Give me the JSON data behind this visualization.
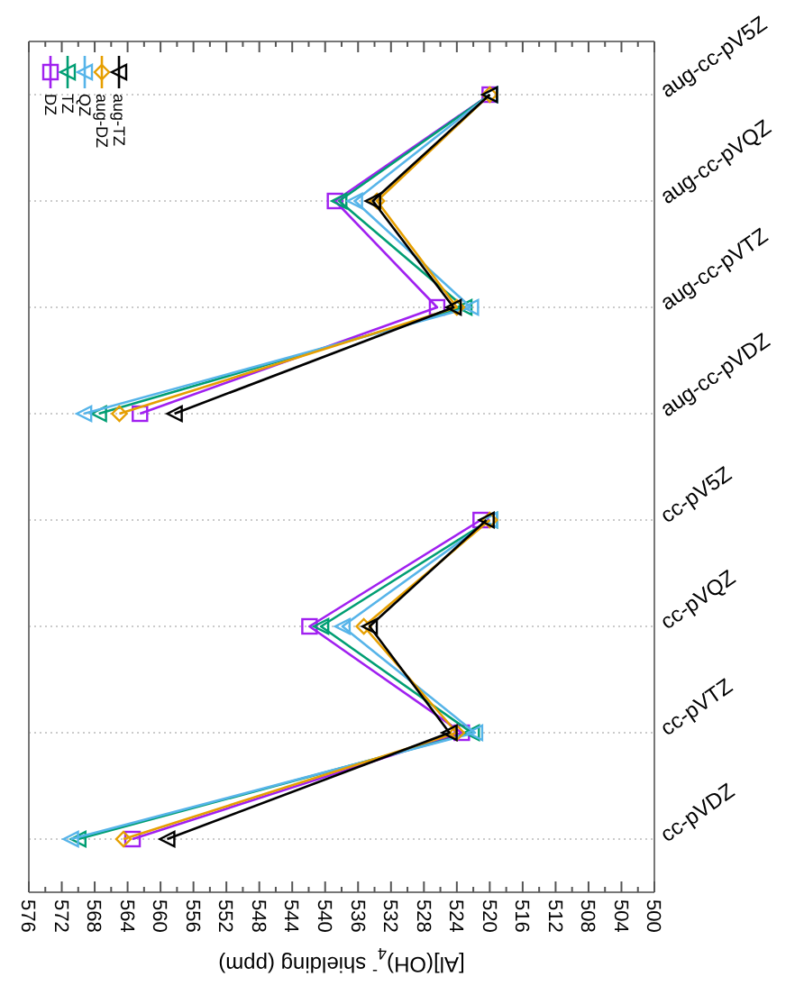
{
  "chart_data": [
    {
      "type": "line",
      "orientation": "horizontal",
      "tick_labels": "y",
      "categories": [
        "aug-cc-pV5Z",
        "aug-cc-pVQZ",
        "aug-cc-pVTZ",
        "aug-cc-pVDZ"
      ],
      "xlim": [
        576,
        500
      ],
      "xticks": [
        576,
        {
          "value": 574,
          "label": null
        },
        572,
        {
          "value": 570,
          "label": null
        },
        568,
        {
          "value": 566,
          "label": null
        },
        564,
        {
          "value": 562,
          "label": null
        },
        560,
        {
          "value": 558,
          "label": null
        },
        556,
        {
          "value": 554,
          "label": null
        },
        552,
        {
          "value": 550,
          "label": null
        },
        548,
        {
          "value": 546,
          "label": null
        },
        544,
        {
          "value": 542,
          "label": null
        },
        540,
        {
          "value": 538,
          "label": null
        },
        536,
        {
          "value": 534,
          "label": null
        },
        532,
        {
          "value": 530,
          "label": null
        },
        528,
        {
          "value": 526,
          "label": null
        },
        524,
        {
          "value": 522,
          "label": null
        },
        520,
        {
          "value": 518,
          "label": null
        },
        516,
        {
          "value": 514,
          "label": null
        },
        512,
        {
          "value": 510,
          "label": null
        },
        508,
        {
          "value": 506,
          "label": null
        },
        504,
        {
          "value": 502,
          "label": null
        },
        500
      ],
      "grid": "y",
      "legend": "top left",
      "series": [
        {
          "name": "DZ",
          "color": "#a020f0",
          "marker": "square",
          "values": [
            520.0,
            538.8,
            526.4,
            562.5
          ]
        },
        {
          "name": "TZ",
          "color": "#009e73",
          "marker": "triangle",
          "values": [
            520.0,
            538.3,
            523.1,
            567.5
          ]
        },
        {
          "name": "QZ",
          "color": "#56b4e9",
          "marker": "triangle",
          "values": [
            520.0,
            536.4,
            522.3,
            569.3
          ]
        },
        {
          "name": "aug-DZ",
          "color": "#e69f00",
          "marker": "diamond",
          "values": [
            520.0,
            533.7,
            524.0,
            565.0
          ]
        },
        {
          "name": "aug-TZ",
          "color": "#000000",
          "marker": "triangle",
          "values": [
            520.0,
            534.2,
            524.4,
            558.3
          ]
        }
      ]
    },
    {
      "type": "line",
      "orientation": "horizontal",
      "xlabel": "[Al](OH)$_{4}$$^{-}$ shielding (ppm)",
      "categories": [
        "cc-pV5Z",
        "cc-pVQZ",
        "cc-pVTZ",
        "cc-pVDZ"
      ],
      "xlim": [
        576,
        500
      ],
      "xticks": [
        576,
        {
          "value": 574,
          "label": null
        },
        572,
        {
          "value": 570,
          "label": null
        },
        568,
        {
          "value": 566,
          "label": null
        },
        564,
        {
          "value": 562,
          "label": null
        },
        560,
        {
          "value": 558,
          "label": null
        },
        556,
        {
          "value": 554,
          "label": null
        },
        552,
        {
          "value": 550,
          "label": null
        },
        548,
        {
          "value": 546,
          "label": null
        },
        544,
        {
          "value": 542,
          "label": null
        },
        540,
        {
          "value": 538,
          "label": null
        },
        536,
        {
          "value": 534,
          "label": null
        },
        532,
        {
          "value": 530,
          "label": null
        },
        528,
        {
          "value": 526,
          "label": null
        },
        524,
        {
          "value": 522,
          "label": null
        },
        520,
        {
          "value": 518,
          "label": null
        },
        516,
        {
          "value": 514,
          "label": null
        },
        512,
        {
          "value": 510,
          "label": null
        },
        508,
        {
          "value": 506,
          "label": null
        },
        504,
        {
          "value": 502,
          "label": null
        },
        500
      ],
      "grid": "y",
      "series": [
        {
          "color": "#a020f0",
          "marker": "square",
          "values": [
            521.1,
            541.9,
            523.4,
            563.4
          ]
        },
        {
          "color": "#009e73",
          "marker": "triangle",
          "values": [
            520.0,
            540.5,
            522.2,
            570.0
          ]
        },
        {
          "color": "#56b4e9",
          "marker": "triangle",
          "values": [
            520.0,
            537.9,
            521.8,
            570.9
          ]
        },
        {
          "color": "#e69f00",
          "marker": "diamond",
          "values": [
            520.0,
            535.3,
            524.0,
            564.5
          ]
        },
        {
          "color": "#000000",
          "marker": "triangle",
          "values": [
            520.4,
            534.6,
            524.9,
            559.2
          ]
        }
      ]
    }
  ]
}
